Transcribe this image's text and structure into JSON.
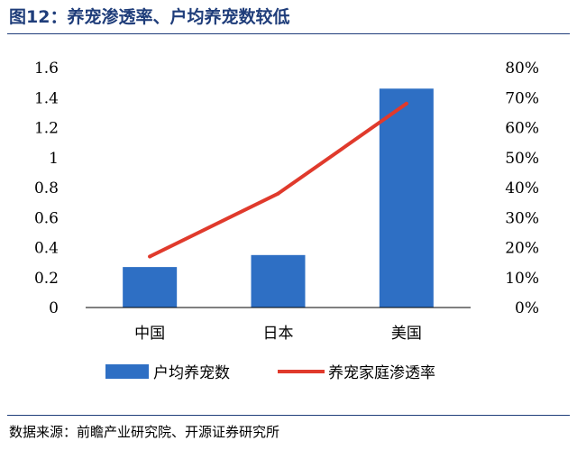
{
  "figure": {
    "title": "图12：养宠渗透率、户均养宠数较低",
    "source": "数据来源：前瞻产业研究院、开源证券研究所"
  },
  "chart_data": {
    "type": "bar",
    "categories": [
      "中国",
      "日本",
      "美国"
    ],
    "series": [
      {
        "name": "户均养宠数",
        "type": "bar",
        "axis": "left",
        "values": [
          0.27,
          0.35,
          1.46
        ],
        "color": "#2e6fc4"
      },
      {
        "name": "养宠家庭渗透率",
        "type": "line",
        "axis": "right",
        "values": [
          0.17,
          0.38,
          0.68
        ],
        "color": "#e03a2c"
      }
    ],
    "y_left": {
      "ylim": [
        0,
        1.6
      ],
      "ticks": [
        "0",
        "0.2",
        "0.4",
        "0.6",
        "0.8",
        "1",
        "1.2",
        "1.4",
        "1.6"
      ]
    },
    "y_right": {
      "ylim": [
        0,
        0.8
      ],
      "ticks": [
        "0%",
        "10%",
        "20%",
        "30%",
        "40%",
        "50%",
        "60%",
        "70%",
        "80%"
      ]
    },
    "legend": "bottom",
    "grid": false
  }
}
